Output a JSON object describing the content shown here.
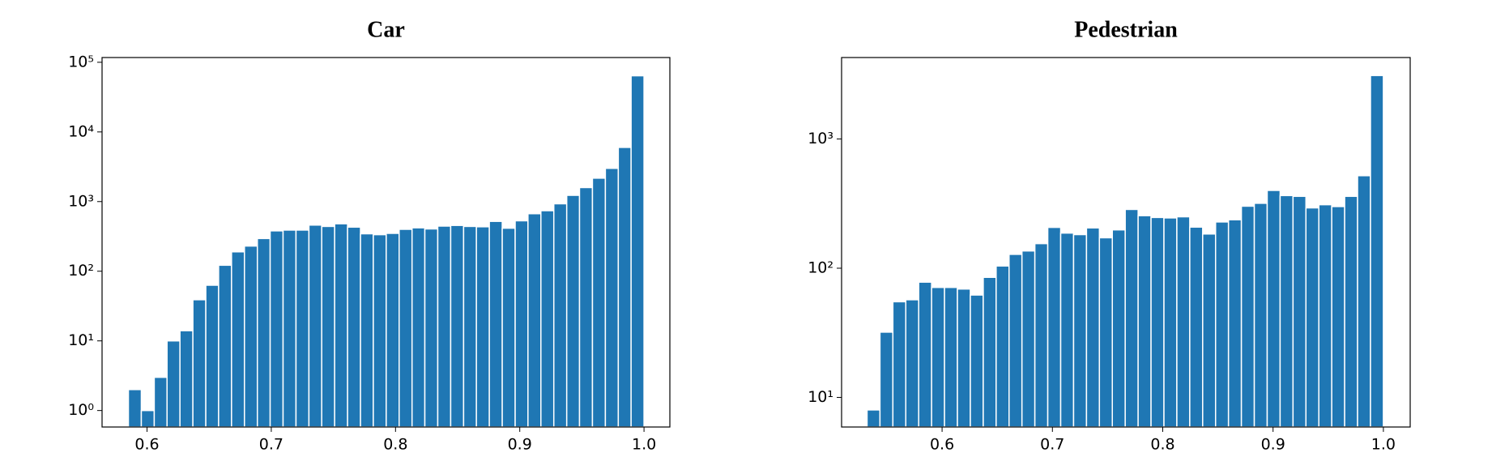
{
  "chart_data": [
    {
      "type": "histogram",
      "title": "Car",
      "color": "#1f77b4",
      "log_y": true,
      "bins": [
        0.585,
        0.5954,
        0.6058,
        0.6161,
        0.6265,
        0.6369,
        0.6473,
        0.6576,
        0.668,
        0.6784,
        0.6888,
        0.6991,
        0.7095,
        0.7199,
        0.7303,
        0.7406,
        0.751,
        0.7614,
        0.7718,
        0.7821,
        0.7925,
        0.8029,
        0.8133,
        0.8236,
        0.834,
        0.8444,
        0.8548,
        0.8651,
        0.8755,
        0.8859,
        0.8963,
        0.9066,
        0.917,
        0.9274,
        0.9378,
        0.9481,
        0.9585,
        0.9689,
        0.9793,
        0.9896,
        1.0
      ],
      "values": [
        2,
        1,
        3,
        10,
        14,
        39,
        63,
        122,
        190,
        230,
        295,
        380,
        390,
        390,
        460,
        440,
        480,
        430,
        345,
        335,
        350,
        400,
        420,
        405,
        445,
        455,
        440,
        435,
        520,
        415,
        530,
        670,
        740,
        930,
        1230,
        1590,
        2170,
        3000,
        6000,
        64000
      ],
      "xlim": [
        0.5638,
        1.0208
      ],
      "xticks": [
        0.6,
        0.7,
        0.8,
        0.9,
        {
          "value": 1,
          "label": "1.0"
        }
      ],
      "ylim": [
        0.58,
        117000
      ],
      "yticks": [
        {
          "value": 1,
          "label": "10⁰"
        },
        {
          "value": 10,
          "label": "10¹"
        },
        {
          "value": 100,
          "label": "10²"
        },
        {
          "value": 1000,
          "label": "10³"
        },
        {
          "value": 10000,
          "label": "10⁴"
        },
        {
          "value": 100000,
          "label": "10⁵"
        }
      ]
    },
    {
      "type": "histogram",
      "title": "Pedestrian",
      "color": "#1f77b4",
      "log_y": true,
      "bins": [
        0.532,
        0.5437,
        0.5554,
        0.5671,
        0.5788,
        0.5905,
        0.6022,
        0.6139,
        0.6256,
        0.6373,
        0.649,
        0.6607,
        0.6724,
        0.6841,
        0.6958,
        0.7075,
        0.7192,
        0.7309,
        0.7426,
        0.7543,
        0.766,
        0.7777,
        0.7894,
        0.8011,
        0.8128,
        0.8245,
        0.8362,
        0.8479,
        0.8596,
        0.8713,
        0.883,
        0.8947,
        0.9064,
        0.9181,
        0.9298,
        0.9415,
        0.9532,
        0.9649,
        0.9766,
        0.9883,
        1.0
      ],
      "values": [
        8,
        32,
        55,
        57,
        78,
        71,
        71,
        69,
        62,
        85,
        104,
        128,
        136,
        155,
        207,
        187,
        182,
        205,
        172,
        198,
        285,
        255,
        247,
        245,
        250,
        208,
        184,
        228,
        237,
        302,
        318,
        400,
        365,
        360,
        293,
        310,
        300,
        360,
        520,
        3100
      ],
      "xlim": [
        0.5089,
        1.0243
      ],
      "xticks": [
        0.6,
        0.7,
        0.8,
        0.9,
        {
          "value": 1,
          "label": "1.0"
        }
      ],
      "ylim": [
        5.9,
        4270
      ],
      "yticks": [
        {
          "value": 10,
          "label": "10¹"
        },
        {
          "value": 100,
          "label": "10²"
        },
        {
          "value": 1000,
          "label": "10³"
        }
      ]
    }
  ]
}
